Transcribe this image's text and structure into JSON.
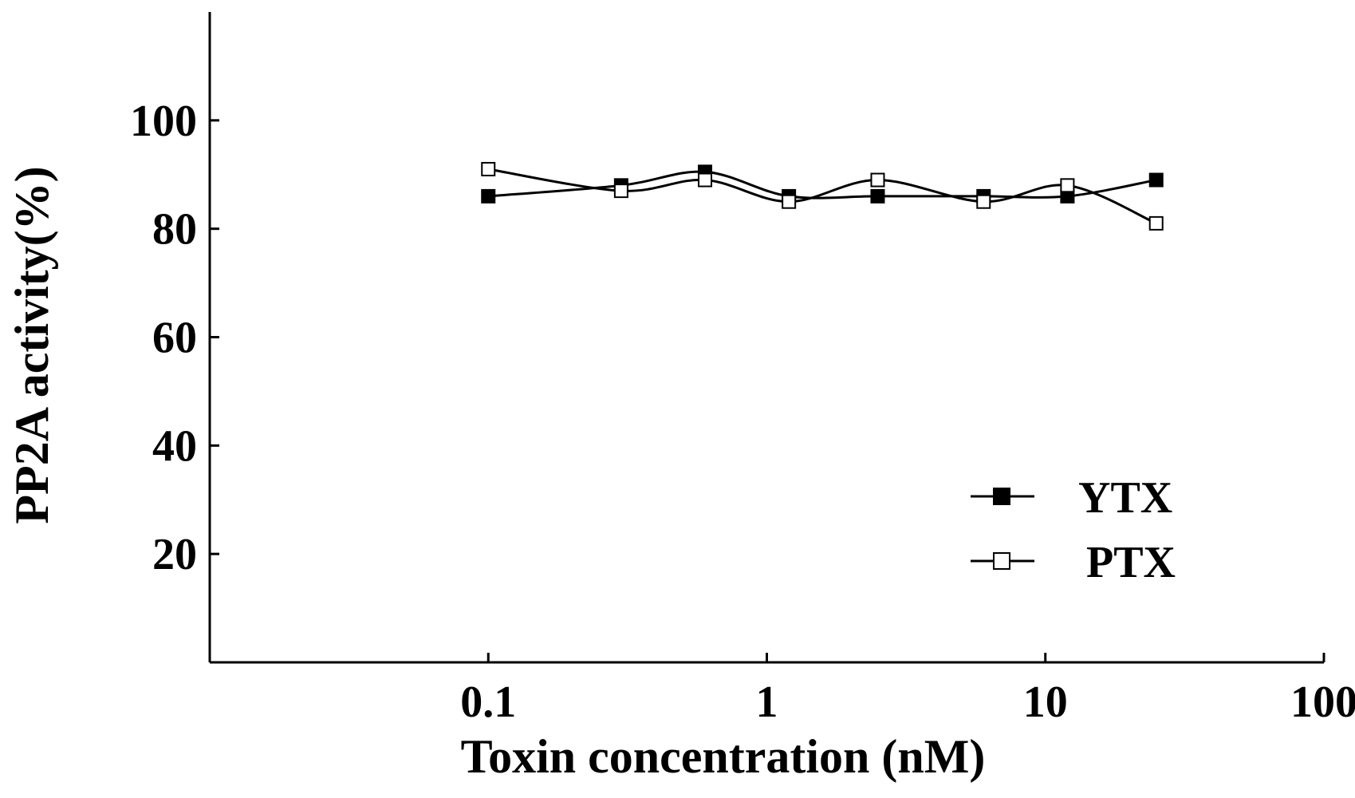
{
  "chart_data": {
    "type": "line",
    "title": "",
    "xlabel": "Toxin concentration (nM)",
    "ylabel": "PP2A activity(%)",
    "x_scale": "log",
    "xlim": [
      0.01,
      100
    ],
    "ylim": [
      0,
      120
    ],
    "x_ticks": [
      0.1,
      1,
      10,
      100
    ],
    "x_tick_labels": [
      "0.1",
      "1",
      "10",
      "100"
    ],
    "y_ticks": [
      20,
      40,
      60,
      80,
      100
    ],
    "y_tick_labels": [
      "20",
      "40",
      "60",
      "80",
      "100"
    ],
    "grid": false,
    "legend_position": "bottom-right",
    "series": [
      {
        "name": "YTX",
        "marker": "filled-square",
        "color": "#000000",
        "x": [
          0.1,
          0.3,
          0.6,
          1.2,
          2.5,
          6,
          12,
          25
        ],
        "y": [
          86,
          88,
          90.5,
          86,
          86,
          86,
          86,
          89
        ]
      },
      {
        "name": "PTX",
        "marker": "open-square",
        "color": "#000000",
        "x": [
          0.1,
          0.3,
          0.6,
          1.2,
          2.5,
          6,
          12,
          25
        ],
        "y": [
          91,
          87,
          89,
          85,
          89,
          85,
          88,
          81
        ]
      }
    ]
  }
}
